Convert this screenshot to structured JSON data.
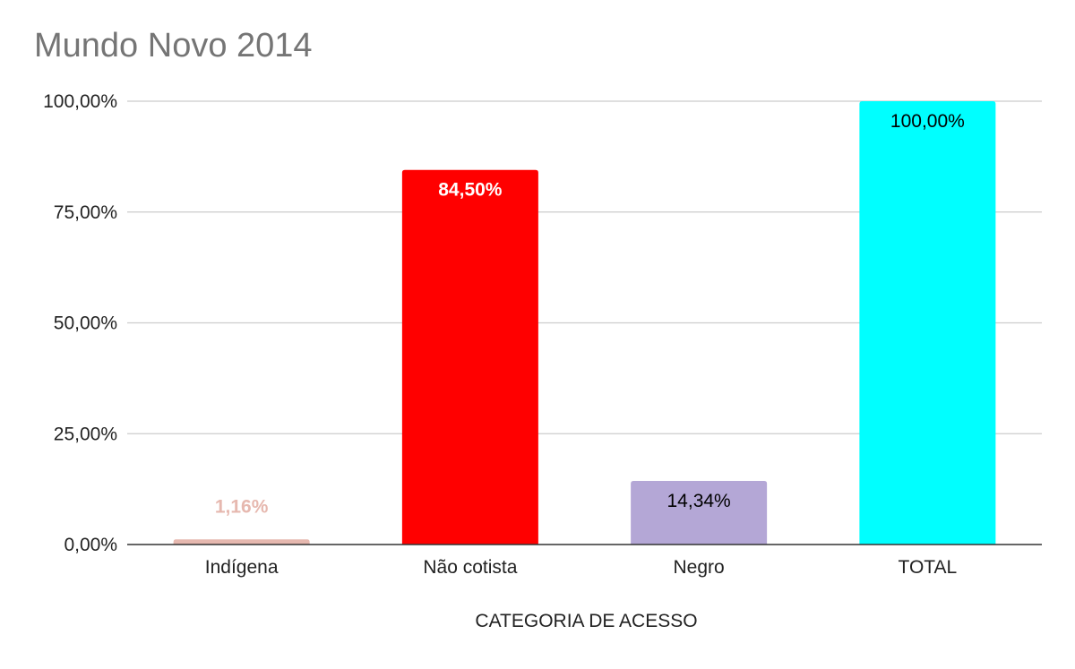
{
  "chart_data": {
    "type": "bar",
    "title": "Mundo Novo 2014",
    "xlabel": "CATEGORIA DE ACESSO",
    "ylabel": "",
    "ylim": [
      0,
      100
    ],
    "yticks": [
      0,
      25,
      50,
      75,
      100
    ],
    "ytick_labels": [
      "0,00%",
      "25,00%",
      "50,00%",
      "75,00%",
      "100,00%"
    ],
    "categories": [
      "Indígena",
      "Não cotista",
      "Negro",
      "TOTAL"
    ],
    "values": [
      1.16,
      84.5,
      14.34,
      100
    ],
    "data_labels": [
      "1,16%",
      "84,50%",
      "14,34%",
      "100,00%"
    ],
    "colors": [
      "#e6b8af",
      "#ff0000",
      "#b4a7d6",
      "#00ffff"
    ],
    "label_colors": [
      "#e6b8af",
      "#ffffff",
      "#000000",
      "#000000"
    ],
    "grid": true,
    "legend": "none"
  }
}
